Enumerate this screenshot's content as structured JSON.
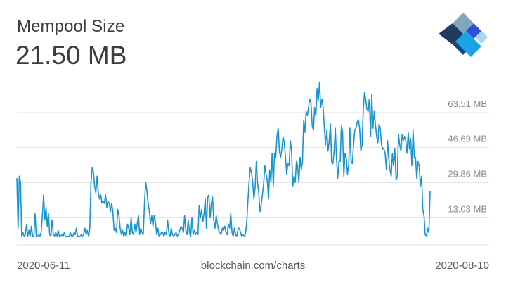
{
  "header": {
    "title": "Mempool Size",
    "current_value": "21.50 MB"
  },
  "logo": {
    "icon": "blockchain-logo-icon",
    "colors": [
      "#1e3a5f",
      "#12497c",
      "#7fa8bd",
      "#2f4fd1",
      "#1aa4e3",
      "#a6d8f2"
    ]
  },
  "footer": {
    "start_date": "2020-06-11",
    "source": "blockchain.com/charts",
    "end_date": "2020-08-10"
  },
  "chart_data": {
    "type": "line",
    "title": "Mempool Size",
    "xlabel": "",
    "ylabel": "",
    "x_range": [
      "2020-06-11",
      "2020-08-10"
    ],
    "ylim": [
      0,
      80.34
    ],
    "y_ticks": [
      13.03,
      29.86,
      46.69,
      63.51
    ],
    "y_tick_labels": [
      "13.03 MB",
      "29.86 MB",
      "46.69 MB",
      "63.51 MB"
    ],
    "grid": true,
    "line_color": "#1a94cf",
    "series": [
      {
        "values": [
          32,
          8,
          33,
          30,
          4,
          6,
          4,
          5,
          10,
          4,
          7,
          4,
          9,
          4,
          4,
          15,
          4,
          4,
          5,
          4,
          6,
          14,
          24,
          12,
          18,
          9,
          15,
          5,
          4,
          12,
          5,
          4,
          6,
          4,
          7,
          4,
          4,
          5,
          4,
          6,
          4,
          4,
          4,
          4,
          6,
          4,
          4,
          6,
          5,
          8,
          4,
          4,
          4,
          5,
          4,
          5,
          8,
          5,
          7,
          4,
          8,
          30,
          37,
          35,
          28,
          25,
          33,
          25,
          22,
          24,
          20,
          21,
          20,
          24,
          18,
          21,
          20,
          16,
          20,
          16,
          7,
          8,
          6,
          17,
          14,
          8,
          5,
          7,
          4,
          6,
          4,
          10,
          8,
          5,
          13,
          6,
          5,
          10,
          6,
          10,
          14,
          5,
          8,
          6,
          5,
          20,
          30,
          26,
          20,
          16,
          10,
          14,
          9,
          14,
          11,
          5,
          8,
          4,
          5,
          6,
          6,
          4,
          6,
          5,
          12,
          6,
          4,
          8,
          5,
          4,
          5,
          6,
          4,
          5,
          7,
          9,
          8,
          6,
          14,
          7,
          5,
          12,
          6,
          4,
          13,
          5,
          7,
          5,
          6,
          5,
          19,
          13,
          17,
          11,
          15,
          22,
          8,
          23,
          24,
          13,
          20,
          23,
          12,
          8,
          14,
          10,
          7,
          6,
          5,
          8,
          7,
          9,
          6,
          5,
          10,
          8,
          15,
          6,
          4,
          8,
          5,
          4,
          8,
          8,
          6,
          4,
          5,
          4,
          5,
          10,
          20,
          30,
          37,
          35,
          30,
          22,
          27,
          40,
          30,
          25,
          16,
          19,
          24,
          29,
          38,
          34,
          31,
          22,
          36,
          30,
          44,
          28,
          44,
          42,
          52,
          56,
          45,
          42,
          46,
          52,
          49,
          42,
          34,
          39,
          38,
          50,
          45,
          28,
          33,
          30,
          40,
          38,
          30,
          42,
          36,
          40,
          60,
          54,
          64,
          62,
          66,
          70,
          68,
          57,
          55,
          66,
          62,
          75,
          69,
          78,
          66,
          70,
          66,
          56,
          48,
          55,
          45,
          50,
          58,
          40,
          39,
          45,
          56,
          41,
          32,
          40,
          40,
          57,
          54,
          33,
          44,
          42,
          34,
          38,
          56,
          40,
          39,
          48,
          55,
          56,
          59,
          60,
          56,
          45,
          48,
          65,
          73,
          70,
          65,
          64,
          70,
          52,
          72,
          56,
          64,
          58,
          52,
          49,
          58,
          56,
          48,
          46,
          46,
          44,
          36,
          50,
          41,
          36,
          33,
          44,
          38,
          46,
          31,
          33,
          53,
          48,
          45,
          53,
          50,
          52,
          50,
          44,
          54,
          46,
          51,
          38,
          55,
          42,
          42,
          32,
          40,
          38,
          28,
          33,
          17,
          14,
          5,
          4,
          8,
          6,
          26
        ]
      }
    ]
  }
}
